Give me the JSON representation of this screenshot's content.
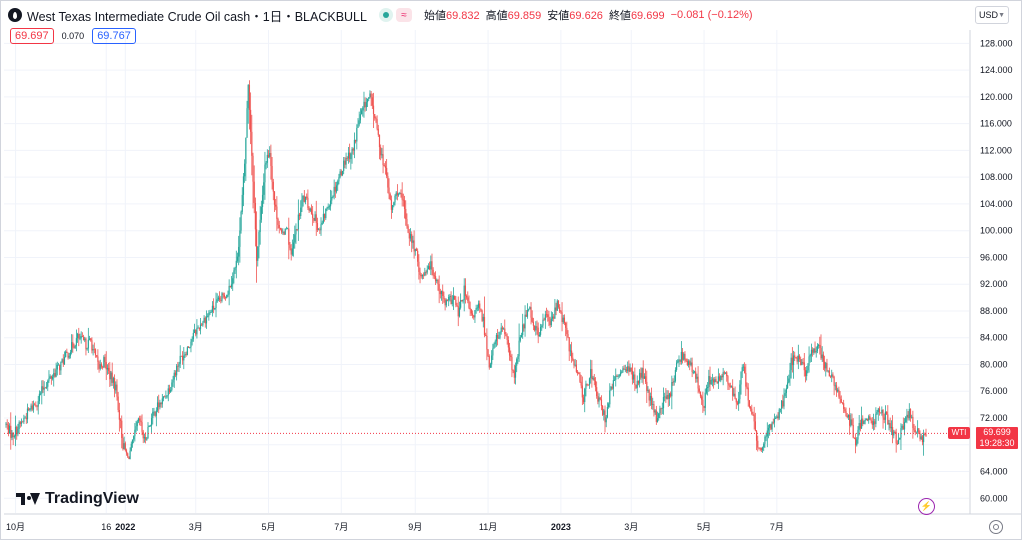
{
  "header": {
    "title": "West Texas Intermediate Crude Oil cash・1日・BLACKBULL",
    "open_label": "始値",
    "open_value": "69.832",
    "high_label": "高値",
    "high_value": "69.859",
    "low_label": "安値",
    "low_value": "69.626",
    "close_label": "終値",
    "close_value": "69.699",
    "change": "−0.081 (−0.12%)"
  },
  "quote": {
    "bid": "69.697",
    "spread": "0.070",
    "ask": "69.767"
  },
  "currency": "USD",
  "brand": "TradingView",
  "icons": {
    "symbol": "oil-drop-icon",
    "bolt": "bolt-icon",
    "settings": "gear-icon",
    "wave": "wave-icon"
  },
  "colors": {
    "up": "#26a69a",
    "down": "#ef5350",
    "last_price": "#f23645",
    "ask": "#2962ff"
  },
  "last_price": {
    "label": "WTI",
    "value": "69.699",
    "countdown": "19:28:30"
  },
  "chart_data": {
    "type": "candlestick",
    "y_axis_ticks": [
      "60.000",
      "64.000",
      "68.000",
      "72.000",
      "76.000",
      "80.000",
      "84.000",
      "88.000",
      "92.000",
      "96.000",
      "100.000",
      "104.000",
      "108.000",
      "112.000",
      "116.000",
      "120.000",
      "124.000",
      "128.000"
    ],
    "x_axis_ticks": [
      "10月",
      "16",
      "2022",
      "3月",
      "5月",
      "7月",
      "9月",
      "11月",
      "2023",
      "3月",
      "5月",
      "7月"
    ],
    "ylim": [
      57.8,
      130.0
    ],
    "last_value": 69.699,
    "grid": true,
    "price_path": [
      [
        "2021-09-23",
        71.0
      ],
      [
        "2021-09-28",
        69.4
      ],
      [
        "2021-10-05",
        71.0
      ],
      [
        "2021-10-12",
        73.0
      ],
      [
        "2021-10-19",
        74.5
      ],
      [
        "2021-10-25",
        76.8
      ],
      [
        "2021-11-01",
        78.4
      ],
      [
        "2021-11-08",
        80.0
      ],
      [
        "2021-11-15",
        82.0
      ],
      [
        "2021-11-22",
        84.0
      ],
      [
        "2021-11-29",
        83.0
      ],
      [
        "2021-12-03",
        83.5
      ],
      [
        "2021-12-07",
        81.0
      ],
      [
        "2021-12-10",
        79.5
      ],
      [
        "2021-12-14",
        80.5
      ],
      [
        "2021-12-20",
        78.0
      ],
      [
        "2021-12-24",
        76.5
      ],
      [
        "2021-12-28",
        71.0
      ],
      [
        "2021-12-30",
        68.0
      ],
      [
        "2022-01-03",
        66.0
      ],
      [
        "2022-01-07",
        68.0
      ],
      [
        "2022-01-11",
        71.0
      ],
      [
        "2022-01-13",
        71.5
      ],
      [
        "2022-01-17",
        68.5
      ],
      [
        "2022-01-21",
        71.0
      ],
      [
        "2022-01-27",
        73.5
      ],
      [
        "2022-02-01",
        74.5
      ],
      [
        "2022-02-08",
        77.0
      ],
      [
        "2022-02-15",
        80.5
      ],
      [
        "2022-02-22",
        82.5
      ],
      [
        "2022-03-01",
        85.0
      ],
      [
        "2022-03-07",
        86.5
      ],
      [
        "2022-03-14",
        88.0
      ],
      [
        "2022-03-21",
        89.5
      ],
      [
        "2022-03-28",
        91.0
      ],
      [
        "2022-04-04",
        95.0
      ],
      [
        "2022-04-07",
        100.0
      ],
      [
        "2022-04-11",
        110.0
      ],
      [
        "2022-04-14",
        122.0
      ],
      [
        "2022-04-18",
        108.0
      ],
      [
        "2022-04-21",
        96.0
      ],
      [
        "2022-04-25",
        103.0
      ],
      [
        "2022-04-28",
        110.0
      ],
      [
        "2022-05-02",
        112.0
      ],
      [
        "2022-05-06",
        104.0
      ],
      [
        "2022-05-12",
        99.0
      ],
      [
        "2022-05-16",
        101.0
      ],
      [
        "2022-05-20",
        96.0
      ],
      [
        "2022-05-24",
        100.0
      ],
      [
        "2022-05-30",
        105.0
      ],
      [
        "2022-06-06",
        103.0
      ],
      [
        "2022-06-13",
        100.0
      ],
      [
        "2022-06-20",
        104.0
      ],
      [
        "2022-06-27",
        107.0
      ],
      [
        "2022-07-05",
        111.0
      ],
      [
        "2022-07-11",
        112.0
      ],
      [
        "2022-07-15",
        116.0
      ],
      [
        "2022-07-21",
        119.0
      ],
      [
        "2022-07-25",
        120.0
      ],
      [
        "2022-07-29",
        117.0
      ],
      [
        "2022-08-03",
        112.0
      ],
      [
        "2022-08-08",
        108.0
      ],
      [
        "2022-08-12",
        103.0
      ],
      [
        "2022-08-17",
        106.0
      ],
      [
        "2022-08-22",
        104.0
      ],
      [
        "2022-08-26",
        100.0
      ],
      [
        "2022-09-01",
        97.0
      ],
      [
        "2022-09-06",
        93.0
      ],
      [
        "2022-09-12",
        95.0
      ],
      [
        "2022-09-15",
        94.5
      ],
      [
        "2022-09-20",
        92.0
      ],
      [
        "2022-09-26",
        89.0
      ],
      [
        "2022-10-03",
        90.0
      ],
      [
        "2022-10-07",
        87.5
      ],
      [
        "2022-10-12",
        91.0
      ],
      [
        "2022-10-18",
        87.0
      ],
      [
        "2022-10-24",
        88.5
      ],
      [
        "2022-10-28",
        86.5
      ],
      [
        "2022-11-02",
        80.0
      ],
      [
        "2022-11-08",
        84.0
      ],
      [
        "2022-11-14",
        85.5
      ],
      [
        "2022-11-18",
        82.0
      ],
      [
        "2022-11-23",
        78.0
      ],
      [
        "2022-11-28",
        84.0
      ],
      [
        "2022-12-05",
        89.0
      ],
      [
        "2022-12-09",
        86.0
      ],
      [
        "2022-12-14",
        84.5
      ],
      [
        "2022-12-19",
        87.5
      ],
      [
        "2022-12-23",
        86.0
      ],
      [
        "2022-12-29",
        89.0
      ],
      [
        "2023-01-04",
        86.0
      ],
      [
        "2023-01-10",
        81.0
      ],
      [
        "2023-01-16",
        78.0
      ],
      [
        "2023-01-20",
        75.0
      ],
      [
        "2023-01-26",
        79.0
      ],
      [
        "2023-02-01",
        75.0
      ],
      [
        "2023-02-07",
        72.0
      ],
      [
        "2023-02-13",
        77.0
      ],
      [
        "2023-02-17",
        78.0
      ],
      [
        "2023-02-23",
        80.0
      ],
      [
        "2023-03-01",
        78.5
      ],
      [
        "2023-03-06",
        77.0
      ],
      [
        "2023-03-10",
        79.0
      ],
      [
        "2023-03-16",
        75.0
      ],
      [
        "2023-03-22",
        72.0
      ],
      [
        "2023-03-28",
        74.5
      ],
      [
        "2023-04-03",
        76.0
      ],
      [
        "2023-04-10",
        81.0
      ],
      [
        "2023-04-14",
        81.5
      ],
      [
        "2023-04-19",
        80.0
      ],
      [
        "2023-04-25",
        77.5
      ],
      [
        "2023-05-01",
        74.0
      ],
      [
        "2023-05-05",
        78.0
      ],
      [
        "2023-05-11",
        77.0
      ],
      [
        "2023-05-17",
        79.0
      ],
      [
        "2023-05-23",
        76.5
      ],
      [
        "2023-05-29",
        74.0
      ],
      [
        "2023-06-02",
        80.0
      ],
      [
        "2023-06-06",
        76.0
      ],
      [
        "2023-06-12",
        71.0
      ],
      [
        "2023-06-15",
        67.0
      ],
      [
        "2023-06-20",
        68.0
      ],
      [
        "2023-06-26",
        71.0
      ],
      [
        "2023-07-03",
        73.0
      ],
      [
        "2023-07-07",
        75.0
      ],
      [
        "2023-07-13",
        80.5
      ],
      [
        "2023-07-19",
        81.0
      ],
      [
        "2023-07-25",
        79.0
      ],
      [
        "2023-07-31",
        82.0
      ],
      [
        "2023-08-04",
        83.0
      ],
      [
        "2023-08-10",
        80.0
      ],
      [
        "2023-08-16",
        78.0
      ],
      [
        "2023-08-22",
        75.0
      ],
      [
        "2023-08-28",
        73.0
      ],
      [
        "2023-09-01",
        71.0
      ],
      [
        "2023-09-05",
        68.0
      ],
      [
        "2023-09-08",
        70.5
      ],
      [
        "2023-09-13",
        72.5
      ],
      [
        "2023-09-19",
        71.0
      ],
      [
        "2023-09-25",
        73.5
      ],
      [
        "2023-10-01",
        72.0
      ],
      [
        "2023-10-05",
        70.0
      ],
      [
        "2023-10-10",
        68.5
      ],
      [
        "2023-10-16",
        71.0
      ],
      [
        "2023-10-20",
        73.0
      ],
      [
        "2023-10-25",
        70.0
      ],
      [
        "2023-10-31",
        69.0
      ],
      [
        "2023-11-03",
        69.7
      ]
    ]
  }
}
